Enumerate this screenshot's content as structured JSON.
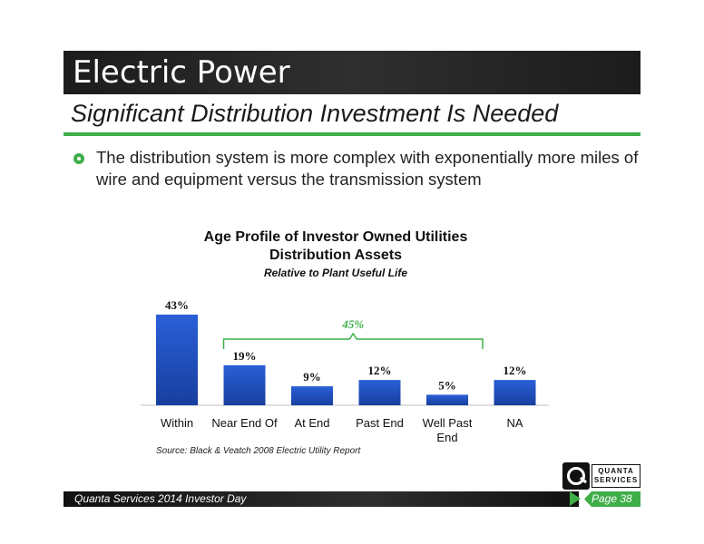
{
  "header": {
    "title": "Electric Power"
  },
  "subtitle": "Significant Distribution Investment Is Needed",
  "bullet": {
    "text": "The distribution system is more complex with exponentially more miles of wire and equipment versus the transmission system"
  },
  "colors": {
    "accent_green": "#3fae49",
    "bar_blue": "#1f4fc2",
    "header_dark": "#232323"
  },
  "chart_data": {
    "type": "bar",
    "title": "Age Profile of Investor Owned Utilities Distribution Assets",
    "title_line1": "Age Profile of Investor Owned Utilities",
    "title_line2": "Distribution Assets",
    "subtitle": "Relative to Plant Useful Life",
    "categories": [
      "Within",
      "Near End Of",
      "At End",
      "Past End",
      "Well Past End",
      "NA"
    ],
    "category_lines": [
      [
        "Within"
      ],
      [
        "Near End Of"
      ],
      [
        "At End"
      ],
      [
        "Past End"
      ],
      [
        "Well Past",
        "End"
      ],
      [
        "NA"
      ]
    ],
    "values": [
      43,
      19,
      9,
      12,
      5,
      12
    ],
    "value_labels": [
      "43%",
      "19%",
      "9%",
      "12%",
      "5%",
      "12%"
    ],
    "bracket": {
      "from_category": "Near End Of",
      "to_category": "Well Past End",
      "label": "45%"
    },
    "ylim": [
      0,
      43
    ],
    "source": "Source: Black & Veatch 2008 Electric Utility Report"
  },
  "logo": {
    "line1": "QUANTA",
    "line2": "SERVICES"
  },
  "footer": {
    "text": "Quanta Services 2014 Investor Day",
    "page": "Page 38"
  }
}
